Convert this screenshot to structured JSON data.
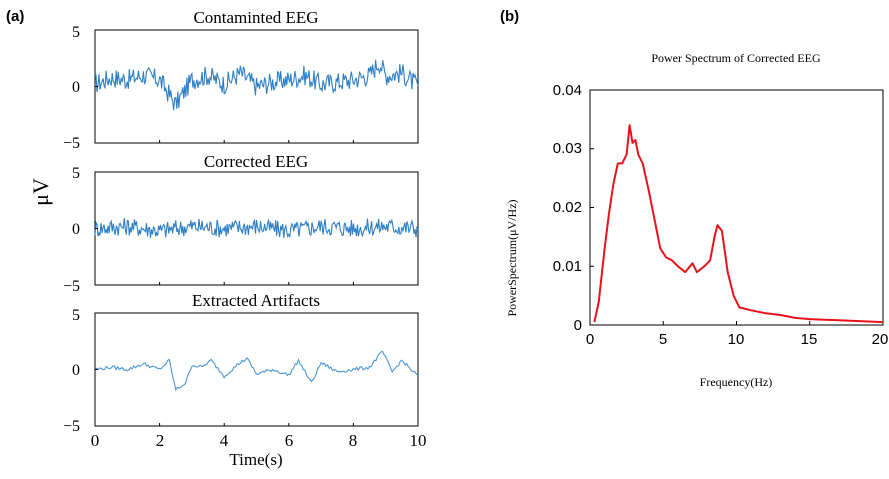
{
  "panel_a": {
    "label": "(a)",
    "y_unit": "μV",
    "x_label": "Time(s)",
    "x_ticks": [
      "0",
      "2",
      "4",
      "6",
      "8",
      "10"
    ],
    "y_ticks": [
      "5",
      "0",
      "−5"
    ]
  },
  "panel_b": {
    "label": "(b)"
  },
  "colors": {
    "eeg": "#2f7fc4",
    "artifact": "#4a96d6",
    "spectrum": "#e8131a"
  },
  "chart_data": [
    {
      "type": "line",
      "title": "Contaminted EEG",
      "xlim": [
        0,
        10
      ],
      "ylim": [
        -5,
        5
      ],
      "xlabel": "Time(s)",
      "ylabel": "μV",
      "series": [
        {
          "x": [
            0,
            0.5,
            1,
            1.5,
            2,
            2.5,
            3,
            3.5,
            4,
            4.5,
            5,
            5.5,
            6,
            6.5,
            7,
            7.5,
            8,
            8.5,
            8.8,
            9,
            9.5,
            10
          ],
          "y": [
            0.2,
            0.8,
            0.6,
            1.0,
            0.6,
            -1.6,
            0.6,
            1.0,
            0.2,
            1.2,
            0.0,
            0.4,
            0.6,
            1.0,
            0.2,
            0.4,
            0.6,
            1.0,
            2.2,
            1.0,
            1.2,
            0.0
          ]
        }
      ]
    },
    {
      "type": "line",
      "title": "Corrected EEG",
      "xlim": [
        0,
        10
      ],
      "ylim": [
        -5,
        5
      ],
      "series": [
        {
          "x": [
            0,
            1,
            2,
            3,
            4,
            5,
            6,
            7,
            8,
            9,
            10
          ],
          "y": [
            0.0,
            0.2,
            -0.2,
            0.2,
            0.0,
            0.2,
            -0.2,
            0.2,
            0.0,
            0.2,
            0.0
          ]
        }
      ]
    },
    {
      "type": "line",
      "title": "Extracted Artifacts",
      "xlim": [
        0,
        10
      ],
      "ylim": [
        -5,
        5
      ],
      "series": [
        {
          "x": [
            0,
            0.5,
            1,
            1.5,
            2,
            2.3,
            2.5,
            2.8,
            3,
            3.3,
            3.6,
            4,
            4.4,
            4.7,
            5,
            5.5,
            6,
            6.3,
            6.7,
            7,
            7.5,
            8,
            8.5,
            8.9,
            9.2,
            9.5,
            10
          ],
          "y": [
            0.0,
            0.2,
            0.0,
            0.5,
            0.0,
            0.8,
            -1.8,
            -1.2,
            0.4,
            0.2,
            0.8,
            -0.6,
            0.4,
            1.0,
            -0.4,
            0.0,
            -0.5,
            0.8,
            -1.2,
            0.6,
            -0.2,
            0.0,
            0.2,
            1.6,
            -0.2,
            0.8,
            -0.6
          ]
        }
      ]
    },
    {
      "type": "line",
      "title": "Power Spectrum of Corrected EEG",
      "xlabel": "Frequency(Hz)",
      "ylabel": "PowerSpectrum(μV/Hz)",
      "xlim": [
        0,
        20
      ],
      "ylim": [
        0,
        0.04
      ],
      "x_ticks": [
        "0",
        "5",
        "10",
        "15",
        "20"
      ],
      "y_ticks": [
        "0",
        "0.01",
        "0.02",
        "0.03",
        "0.04"
      ],
      "series": [
        {
          "x": [
            0.3,
            0.6,
            1.0,
            1.3,
            1.6,
            1.9,
            2.2,
            2.5,
            2.7,
            2.9,
            3.1,
            3.3,
            3.6,
            4.0,
            4.4,
            4.8,
            5.2,
            5.6,
            6.0,
            6.5,
            7.0,
            7.3,
            7.8,
            8.2,
            8.5,
            8.7,
            9.0,
            9.4,
            9.8,
            10.2,
            11.0,
            12.0,
            13.0,
            14.0,
            15.0,
            16.0,
            17.0,
            18.0,
            19.0,
            20.0
          ],
          "y": [
            0.0005,
            0.004,
            0.013,
            0.019,
            0.024,
            0.0275,
            0.0275,
            0.029,
            0.034,
            0.031,
            0.0315,
            0.029,
            0.0275,
            0.023,
            0.018,
            0.013,
            0.0115,
            0.011,
            0.01,
            0.009,
            0.0105,
            0.009,
            0.01,
            0.011,
            0.015,
            0.017,
            0.016,
            0.009,
            0.005,
            0.003,
            0.0025,
            0.002,
            0.0017,
            0.0012,
            0.001,
            0.0009,
            0.0008,
            0.0007,
            0.0006,
            0.0005
          ]
        }
      ]
    }
  ]
}
